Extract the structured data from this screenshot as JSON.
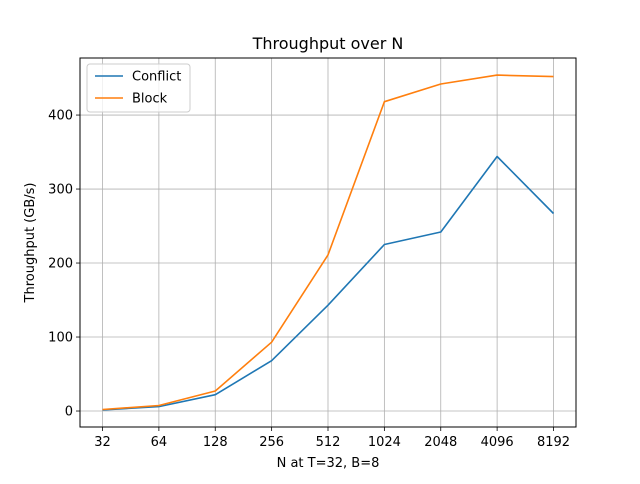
{
  "chart_data": {
    "type": "line",
    "title": "Throughput over N",
    "xlabel": "N at T=32, B=8",
    "ylabel": "Throughput (GB/s)",
    "categories": [
      "32",
      "64",
      "128",
      "256",
      "512",
      "1024",
      "2048",
      "4096",
      "8192"
    ],
    "series": [
      {
        "name": "Conflict",
        "color": "#1f77b4",
        "values": [
          1.5,
          6,
          22,
          68,
          143,
          225,
          242,
          344,
          267
        ]
      },
      {
        "name": "Block",
        "color": "#ff7f0e",
        "values": [
          2,
          7.5,
          27,
          93,
          211,
          418,
          442,
          454,
          452
        ]
      }
    ],
    "yticks": [
      0,
      100,
      200,
      300,
      400
    ],
    "ylim": [
      -21.6,
      477.1
    ],
    "grid": true,
    "legend_position": "upper-left"
  }
}
